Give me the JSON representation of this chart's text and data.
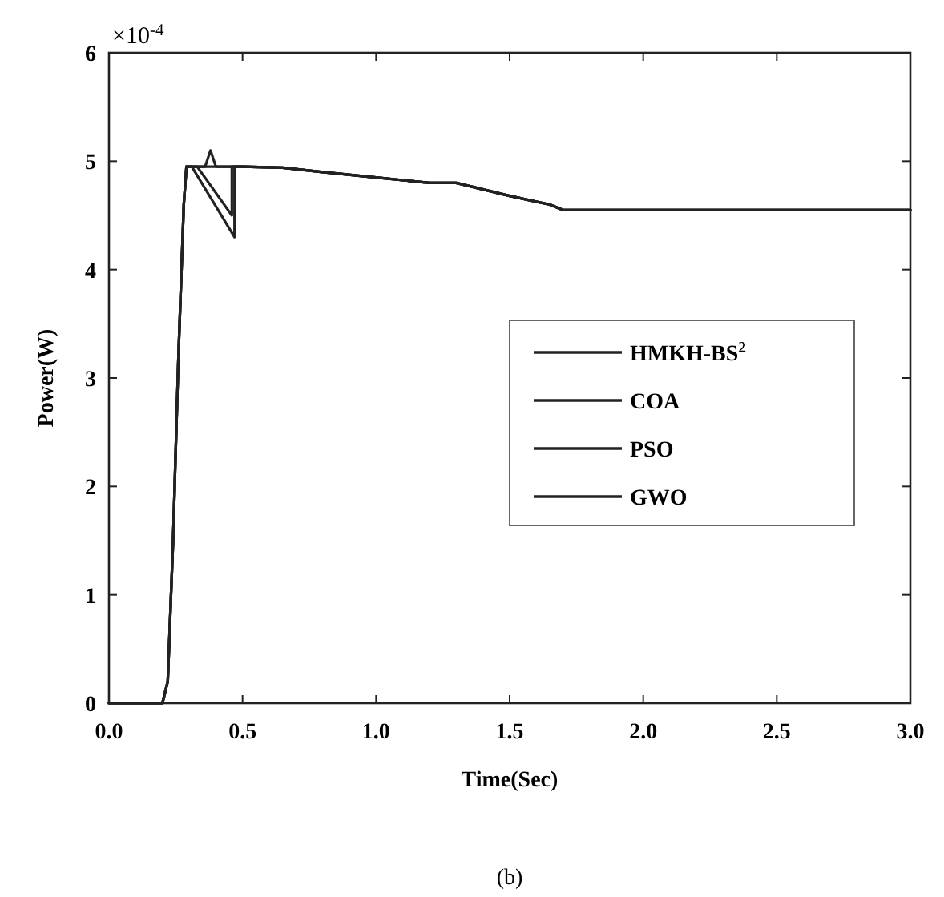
{
  "chart_data": {
    "type": "line",
    "xlabel": "Time(Sec)",
    "ylabel": "Power(W)",
    "annotations": [
      "×10$^{-4}$",
      "(b)"
    ],
    "xlim": [
      0,
      3
    ],
    "xticks": [
      {
        "value": 0,
        "label": "0.0"
      },
      {
        "value": 0.5,
        "label": "0.5"
      },
      {
        "value": 1,
        "label": "1.0"
      },
      {
        "value": 1.5,
        "label": "1.5"
      },
      {
        "value": 2,
        "label": "2.0"
      },
      {
        "value": 2.5,
        "label": "2.5"
      },
      {
        "value": 3,
        "label": "3.0"
      }
    ],
    "ylim": [
      0,
      6
    ],
    "yticks": [
      0,
      1,
      2,
      3,
      4,
      5,
      6
    ],
    "grid": false,
    "legend": "right",
    "line_style": "solid",
    "series": [
      {
        "name": "HMKH-BS$^{2}$",
        "color": "#222222",
        "x": [
          0,
          0.2,
          0.22,
          0.24,
          0.26,
          0.28,
          0.29,
          0.5,
          0.65,
          0.8,
          1.0,
          1.2,
          1.3,
          1.5,
          1.65,
          1.7,
          3.0
        ],
        "values": [
          0,
          0,
          0.2,
          1.5,
          3.2,
          4.6,
          4.95,
          4.95,
          4.94,
          4.9,
          4.85,
          4.8,
          4.8,
          4.68,
          4.6,
          4.55,
          4.55
        ]
      },
      {
        "name": "COA",
        "color": "#222222",
        "x": [
          0,
          0.2,
          0.22,
          0.24,
          0.26,
          0.28,
          0.29,
          0.31,
          0.47,
          0.47,
          0.5,
          0.65,
          0.8,
          1.0,
          1.2,
          1.3,
          1.5,
          1.65,
          1.7,
          3.0
        ],
        "values": [
          0,
          0,
          0.2,
          1.5,
          3.2,
          4.6,
          4.95,
          4.95,
          4.3,
          4.95,
          4.95,
          4.94,
          4.9,
          4.85,
          4.8,
          4.8,
          4.68,
          4.6,
          4.55,
          4.55
        ]
      },
      {
        "name": "PSO",
        "color": "#222222",
        "x": [
          0,
          0.2,
          0.22,
          0.24,
          0.26,
          0.28,
          0.29,
          0.36,
          0.38,
          0.4,
          0.5,
          0.65,
          0.8,
          1.0,
          1.2,
          1.3,
          1.5,
          1.65,
          1.7,
          3.0
        ],
        "values": [
          0,
          0,
          0.2,
          1.5,
          3.2,
          4.6,
          4.95,
          4.95,
          5.1,
          4.95,
          4.95,
          4.94,
          4.9,
          4.85,
          4.8,
          4.8,
          4.68,
          4.6,
          4.55,
          4.55
        ]
      },
      {
        "name": "GWO",
        "color": "#222222",
        "x": [
          0,
          0.2,
          0.22,
          0.24,
          0.26,
          0.28,
          0.29,
          0.33,
          0.46,
          0.46,
          0.5,
          0.65,
          0.8,
          1.0,
          1.2,
          1.3,
          1.5,
          1.65,
          1.7,
          3.0
        ],
        "values": [
          0,
          0,
          0.2,
          1.5,
          3.2,
          4.6,
          4.95,
          4.95,
          4.5,
          4.95,
          4.95,
          4.94,
          4.9,
          4.85,
          4.8,
          4.8,
          4.68,
          4.6,
          4.55,
          4.55
        ]
      }
    ]
  }
}
